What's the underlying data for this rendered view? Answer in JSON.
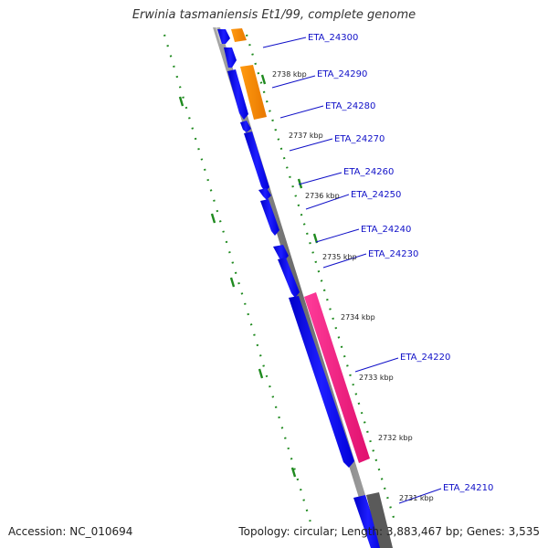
{
  "title": "Erwinia tasmaniensis Et1/99, complete genome",
  "accession": "Accession: NC_010694",
  "summary": "Topology: circular; Length: 3,883,467 bp; Genes: 3,535",
  "colors": {
    "backbone": "#808080",
    "cds_forward": "#0000ff",
    "cds_orange": "#ff8c00",
    "cds_pink": "#ff1493",
    "cds_gray": "#666666",
    "gc_skew": "#1f8a1f",
    "label": "#1010c8"
  },
  "gene_labels": [
    "ETA_24300",
    "ETA_24290",
    "ETA_24280",
    "ETA_24270",
    "ETA_24260",
    "ETA_24250",
    "ETA_24240",
    "ETA_24230",
    "ETA_24220",
    "ETA_24210"
  ],
  "kbp_ticks": [
    "2738 kbp",
    "2737 kbp",
    "2736 kbp",
    "2735 kbp",
    "2734 kbp",
    "2733 kbp",
    "2732 kbp",
    "2731 kbp"
  ]
}
